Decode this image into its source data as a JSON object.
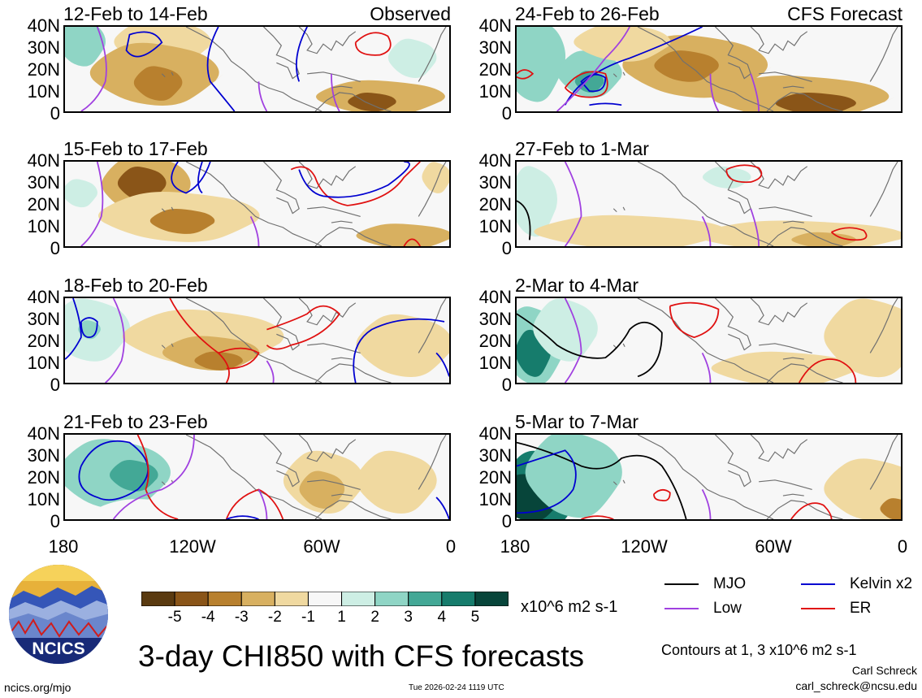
{
  "title": "3-day CHI850 with CFS forecasts",
  "units": "x10^6 m2 s-1",
  "contour_note": "Contours at 1, 3 x10^6 m2 s-1",
  "author": "Carl Schreck",
  "email": "carl_schreck@ncsu.edu",
  "website": "ncics.org/mjo",
  "timestamp": "Tue 2026-02-24 1119 UTC",
  "logo_text": "NCICS",
  "chart_data": {
    "type": "heatmap",
    "title": "3-day CHI850 with CFS forecasts",
    "units": "x10^6 m2 s-1",
    "lat_ticks": [
      "40N",
      "30N",
      "20N",
      "10N",
      "0"
    ],
    "lon_ticks": [
      "180",
      "120W",
      "60W",
      "0"
    ],
    "lat_range": [
      0,
      40
    ],
    "lon_range": [
      -180,
      0
    ],
    "colorbar": {
      "labels": [
        "-5",
        "-4",
        "-3",
        "-2",
        "-1",
        "1",
        "2",
        "3",
        "4",
        "5"
      ],
      "colors": [
        "#5a3a10",
        "#8a5518",
        "#b8802e",
        "#d8b060",
        "#f0d9a0",
        "#f7f7f7",
        "#cdeee4",
        "#8fd5c5",
        "#43a896",
        "#167c6c",
        "#07453a"
      ]
    },
    "legend": [
      {
        "name": "MJO",
        "color": "#000000"
      },
      {
        "name": "Kelvin x2",
        "color": "#0000d0"
      },
      {
        "name": "Low",
        "color": "#a040e0"
      },
      {
        "name": "ER",
        "color": "#e01010"
      }
    ],
    "panels": [
      {
        "title": "12-Feb to 14-Feb",
        "label": "Observed"
      },
      {
        "title": "24-Feb to 26-Feb",
        "label": "CFS Forecast"
      },
      {
        "title": "15-Feb to 17-Feb",
        "label": ""
      },
      {
        "title": "27-Feb to 1-Mar",
        "label": ""
      },
      {
        "title": "18-Feb to 20-Feb",
        "label": ""
      },
      {
        "title": "2-Mar to 4-Mar",
        "label": ""
      },
      {
        "title": "21-Feb to 23-Feb",
        "label": ""
      },
      {
        "title": "5-Mar to 7-Mar",
        "label": ""
      }
    ]
  }
}
